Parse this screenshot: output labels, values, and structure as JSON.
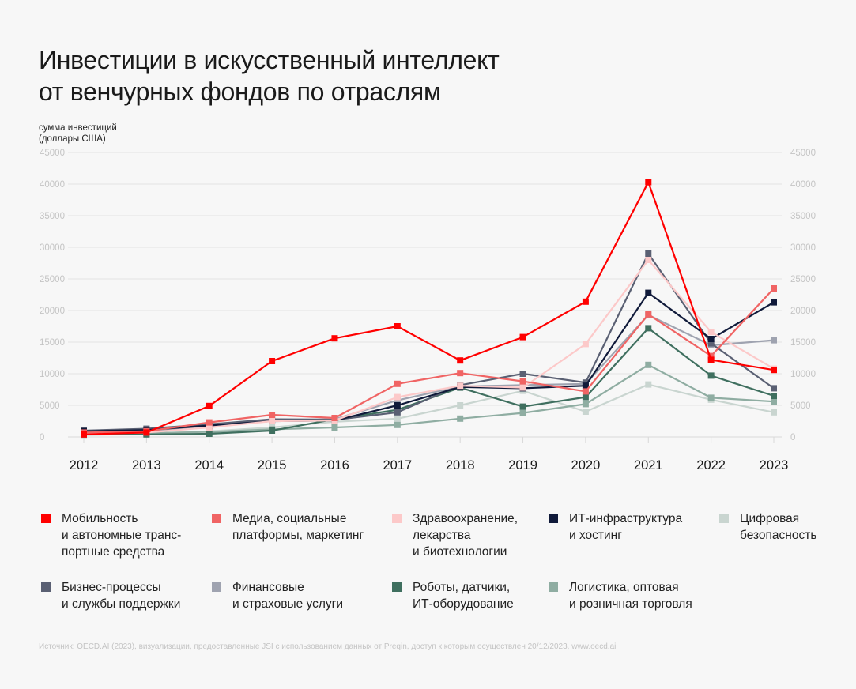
{
  "title_line1": "Инвестиции в искусственный интеллект",
  "title_line2": "от венчурных фондов по отраслям",
  "source": "Источник: OECD.AI (2023), визуализации, предоставленные JSI с использованием данных от Preqin, доступ к которым осуществлен 20/12/2023, www.oecd.ai",
  "chart_data": {
    "type": "line",
    "ylabel_line1": "сумма инвестиций",
    "ylabel_line2": "(доллары США)",
    "ylim": [
      0,
      45000
    ],
    "yticks": [
      "0",
      "5000",
      "10000",
      "15000",
      "20000",
      "25000",
      "30000",
      "35000",
      "40000",
      "45000"
    ],
    "x": [
      "2012",
      "2013",
      "2014",
      "2015",
      "2016",
      "2017",
      "2018",
      "2019",
      "2020",
      "2021",
      "2022",
      "2023"
    ],
    "grid": true,
    "legend_placement": "bottom",
    "series": [
      {
        "name": "Мобильность\nи автономные транс-\nпортные средства",
        "color": "#ff0000",
        "values": [
          400,
          700,
          4900,
          12000,
          15600,
          17500,
          12100,
          15800,
          21400,
          40300,
          12200,
          10600
        ]
      },
      {
        "name": "Медиа, социальные\nплатформы, маркетинг",
        "color": "#f06464",
        "values": [
          700,
          900,
          2300,
          3500,
          3000,
          8400,
          10100,
          8800,
          7200,
          19400,
          12800,
          23500
        ]
      },
      {
        "name": "Здравоохранение,\nлекарства\nи биотехнологии",
        "color": "#fcc9c9",
        "values": [
          500,
          700,
          1500,
          2500,
          2600,
          6300,
          8100,
          7800,
          14700,
          28000,
          16600,
          10800
        ]
      },
      {
        "name": "ИТ-инфраструктура\nи хостинг",
        "color": "#101a3a",
        "values": [
          900,
          1100,
          1800,
          2500,
          2600,
          5000,
          7900,
          7700,
          8100,
          22800,
          15500,
          21300
        ]
      },
      {
        "name": "Цифровая\nбезопасность",
        "color": "#c9d5d0",
        "values": [
          300,
          500,
          900,
          1500,
          2400,
          2900,
          5000,
          7300,
          4000,
          8300,
          5900,
          3900
        ]
      },
      {
        "name": "Бизнес-процессы\nи службы поддержки",
        "color": "#5a6073",
        "values": [
          1000,
          1300,
          2000,
          2800,
          2700,
          3900,
          8200,
          10000,
          8600,
          29000,
          14800,
          7700
        ]
      },
      {
        "name": "Финансовые\nи страховые услуги",
        "color": "#9fa3b0",
        "values": [
          600,
          800,
          1600,
          2800,
          2800,
          5800,
          8000,
          8200,
          8400,
          19300,
          14500,
          15300
        ]
      },
      {
        "name": "Роботы, датчики,\nИТ-оборудование",
        "color": "#3f6f5f",
        "values": [
          400,
          400,
          500,
          1000,
          2800,
          4300,
          7800,
          4800,
          6300,
          17200,
          9700,
          6500
        ]
      },
      {
        "name": "Логистика, оптовая\n и розничная торговля",
        "color": "#8fada2",
        "values": [
          400,
          600,
          800,
          1200,
          1500,
          1900,
          2900,
          3800,
          5200,
          11400,
          6200,
          5600
        ]
      }
    ]
  }
}
